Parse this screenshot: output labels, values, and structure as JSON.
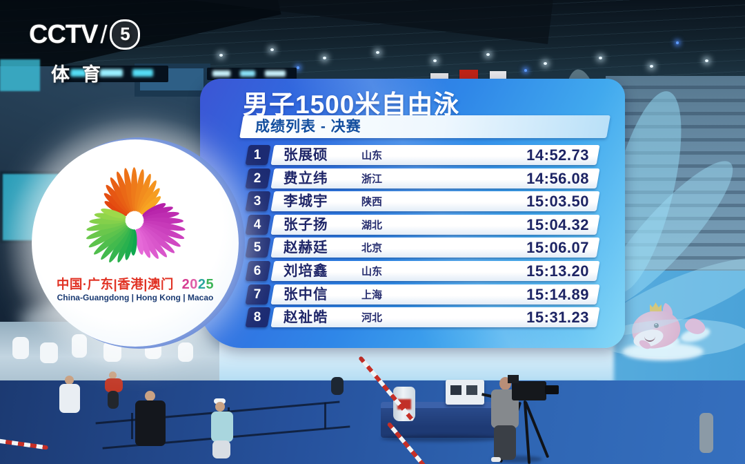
{
  "channel": {
    "name": "CCTV",
    "number": "5",
    "tagline": "体育"
  },
  "scoreboard": {
    "title": "男子1500米自由泳",
    "subtitle": "成绩列表 - 决赛",
    "rows": [
      {
        "rank": "1",
        "name": "张展硕",
        "team": "山东",
        "time": "14:52.73"
      },
      {
        "rank": "2",
        "name": "费立纬",
        "team": "浙江",
        "time": "14:56.08"
      },
      {
        "rank": "3",
        "name": "李城宇",
        "team": "陕西",
        "time": "15:03.50"
      },
      {
        "rank": "4",
        "name": "张子扬",
        "team": "湖北",
        "time": "15:04.32"
      },
      {
        "rank": "5",
        "name": "赵赫廷",
        "team": "北京",
        "time": "15:06.07"
      },
      {
        "rank": "6",
        "name": "刘培鑫",
        "team": "山东",
        "time": "15:13.20"
      },
      {
        "rank": "7",
        "name": "张中信",
        "team": "上海",
        "time": "15:14.89"
      },
      {
        "rank": "8",
        "name": "赵祉皓",
        "team": "河北",
        "time": "15:31.23"
      }
    ]
  },
  "event_logo": {
    "line_zh": "中国·广东|香港|澳门",
    "year_digits": [
      {
        "d": "2",
        "c": "#d63d92"
      },
      {
        "d": "0",
        "c": "#df5fa8"
      },
      {
        "d": "2",
        "c": "#2ba79e"
      },
      {
        "d": "5",
        "c": "#3db457"
      }
    ],
    "line_en": "China-Guangdong | Hong Kong | Macao",
    "arms": [
      {
        "from": "#e2450f",
        "to": "#f8a623"
      },
      {
        "from": "#b51fa8",
        "to": "#e66ad8"
      },
      {
        "from": "#0fa84f",
        "to": "#9ed94a"
      }
    ]
  },
  "colors": {
    "panel_blue": "#2f87e8",
    "panel_cyan": "#86d8f7",
    "rank_box": "#1c2b72",
    "row_text": "#1f2668",
    "subtitle_text": "#134e9e",
    "logo_red": "#e13224",
    "mascot_pink": "#f0a0c0"
  }
}
